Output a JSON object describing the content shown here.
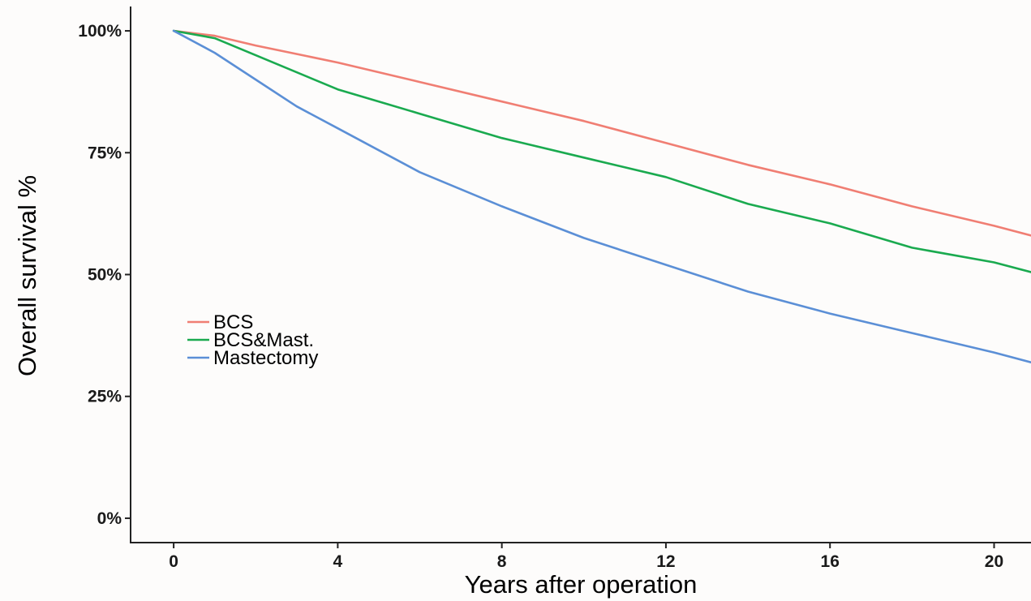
{
  "chart_data": {
    "type": "line",
    "xlabel": "Years after operation",
    "ylabel": "Overall survival %",
    "xlim": [
      -1.05,
      20.9
    ],
    "ylim": [
      -0.05,
      1.05
    ],
    "x_ticks": [
      0,
      4,
      8,
      12,
      16,
      20
    ],
    "x_tick_labels": [
      "0",
      "4",
      "8",
      "12",
      "16",
      "20"
    ],
    "y_ticks": [
      0,
      0.25,
      0.5,
      0.75,
      1.0
    ],
    "y_tick_labels": [
      "0%",
      "25%",
      "50%",
      "75%",
      "100%"
    ],
    "grid": false,
    "legend_position": "left-center",
    "series": [
      {
        "name": "BCS",
        "color": "#f07e73",
        "x": [
          0,
          1,
          2,
          4,
          6,
          8,
          10,
          12,
          14,
          16,
          18,
          20,
          20.9
        ],
        "y": [
          1.0,
          0.99,
          0.97,
          0.935,
          0.895,
          0.855,
          0.815,
          0.77,
          0.725,
          0.685,
          0.64,
          0.6,
          0.58
        ]
      },
      {
        "name": "BCS&Mast.",
        "color": "#1aaa4f",
        "x": [
          0,
          1,
          2,
          4,
          6,
          8,
          10,
          12,
          14,
          16,
          18,
          20,
          20.9
        ],
        "y": [
          1.0,
          0.985,
          0.95,
          0.88,
          0.83,
          0.78,
          0.74,
          0.7,
          0.645,
          0.605,
          0.555,
          0.525,
          0.505
        ]
      },
      {
        "name": "Mastectomy",
        "color": "#5b8fd6",
        "x": [
          0,
          1,
          2,
          3,
          4,
          6,
          8,
          10,
          12,
          14,
          16,
          18,
          20,
          20.9
        ],
        "y": [
          1.0,
          0.955,
          0.9,
          0.845,
          0.8,
          0.71,
          0.64,
          0.575,
          0.52,
          0.465,
          0.42,
          0.38,
          0.34,
          0.32
        ]
      }
    ]
  }
}
